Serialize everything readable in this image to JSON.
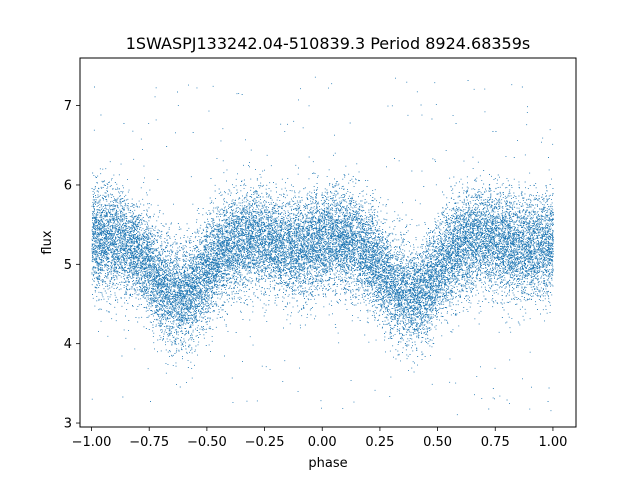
{
  "chart_data": {
    "type": "scatter",
    "title": "1SWASPJ133242.04-510839.3 Period 8924.68359s",
    "xlabel": "phase",
    "ylabel": "flux",
    "xlim": [
      -1.05,
      1.1
    ],
    "ylim": [
      2.95,
      7.6
    ],
    "x_ticks": [
      -1.0,
      -0.75,
      -0.5,
      -0.25,
      0.0,
      0.25,
      0.5,
      0.75,
      1.0
    ],
    "x_tick_labels": [
      "−1.00",
      "−0.75",
      "−0.50",
      "−0.25",
      "0.00",
      "0.25",
      "0.50",
      "0.75",
      "1.00"
    ],
    "y_ticks": [
      3,
      4,
      5,
      6,
      7
    ],
    "y_tick_labels": [
      "3",
      "4",
      "5",
      "6",
      "7"
    ],
    "grid": false,
    "legend": "none",
    "marker_color": "#1f77b4",
    "series": [
      {
        "model": {
          "baseline_flux": 5.38,
          "primary_minimum": {
            "phase": 0.38,
            "flux": 4.6,
            "half_width": 0.12
          },
          "secondary_minimum": {
            "phase": 0.88,
            "flux": 5.2,
            "half_width": 0.1
          },
          "period_in_phase": 1.0,
          "noise_sigma": 0.32
        },
        "samples_approx": 24000,
        "outlier_range": [
          3.1,
          7.4
        ]
      }
    ]
  }
}
